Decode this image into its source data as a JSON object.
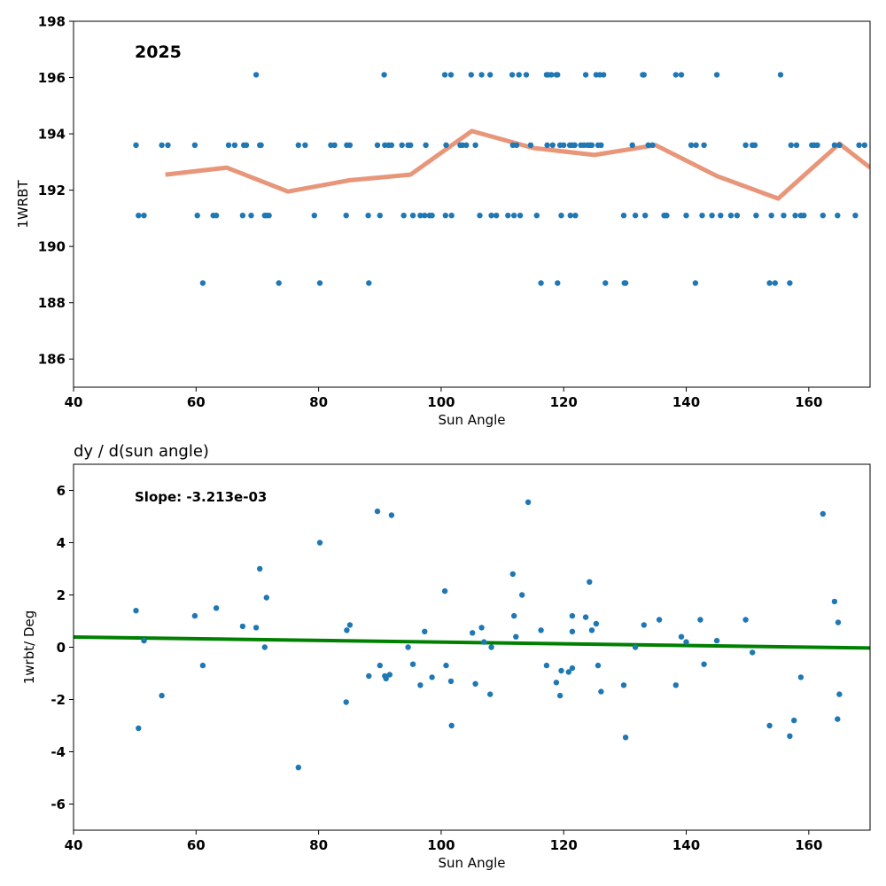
{
  "colors": {
    "scatter": "#1f77b4",
    "rolling_line": "#e8967a",
    "fit_line": "#008000",
    "axis": "#000000"
  },
  "chart_data": [
    {
      "type": "scatter",
      "title": "",
      "annotation": "2025",
      "xlabel": "Sun Angle",
      "ylabel": "1WRBT",
      "xlim": [
        40,
        170
      ],
      "ylim": [
        185,
        198
      ],
      "xticks": [
        40,
        60,
        80,
        100,
        120,
        140,
        160
      ],
      "yticks": [
        186,
        188,
        190,
        192,
        194,
        196,
        198
      ],
      "grid": false,
      "series": [
        {
          "kind": "scatter",
          "points": [
            [
              50.2,
              193.6
            ],
            [
              50.6,
              191.1
            ],
            [
              51.5,
              191.1
            ],
            [
              54.4,
              193.6
            ],
            [
              55.4,
              193.6
            ],
            [
              59.8,
              193.6
            ],
            [
              60.2,
              191.1
            ],
            [
              61.1,
              188.7
            ],
            [
              62.8,
              191.1
            ],
            [
              63.3,
              191.1
            ],
            [
              65.3,
              193.6
            ],
            [
              66.3,
              193.6
            ],
            [
              67.6,
              191.1
            ],
            [
              67.8,
              193.6
            ],
            [
              68.2,
              193.6
            ],
            [
              69.0,
              191.1
            ],
            [
              69.8,
              196.1
            ],
            [
              70.4,
              193.6
            ],
            [
              70.6,
              193.6
            ],
            [
              71.2,
              191.1
            ],
            [
              71.5,
              191.1
            ],
            [
              71.9,
              191.1
            ],
            [
              73.5,
              188.7
            ],
            [
              76.7,
              193.6
            ],
            [
              77.8,
              193.6
            ],
            [
              79.3,
              191.1
            ],
            [
              80.2,
              188.7
            ],
            [
              82.0,
              193.6
            ],
            [
              82.6,
              193.6
            ],
            [
              84.5,
              191.1
            ],
            [
              84.6,
              193.6
            ],
            [
              85.1,
              193.6
            ],
            [
              88.1,
              191.1
            ],
            [
              88.2,
              188.7
            ],
            [
              89.6,
              193.6
            ],
            [
              90.0,
              191.1
            ],
            [
              90.7,
              196.1
            ],
            [
              90.8,
              193.6
            ],
            [
              91.4,
              193.6
            ],
            [
              91.9,
              193.6
            ],
            [
              93.6,
              193.6
            ],
            [
              93.9,
              191.1
            ],
            [
              94.6,
              193.6
            ],
            [
              95.0,
              193.6
            ],
            [
              95.4,
              191.1
            ],
            [
              96.6,
              191.1
            ],
            [
              97.3,
              191.1
            ],
            [
              97.5,
              193.6
            ],
            [
              98.1,
              191.1
            ],
            [
              98.5,
              191.1
            ],
            [
              100.6,
              196.1
            ],
            [
              100.7,
              191.1
            ],
            [
              100.8,
              193.6
            ],
            [
              101.6,
              196.1
            ],
            [
              101.7,
              191.1
            ],
            [
              103.1,
              193.6
            ],
            [
              103.5,
              193.6
            ],
            [
              104.1,
              193.6
            ],
            [
              104.9,
              196.1
            ],
            [
              105.6,
              193.6
            ],
            [
              106.3,
              191.1
            ],
            [
              106.6,
              196.1
            ],
            [
              108.0,
              196.1
            ],
            [
              108.2,
              191.1
            ],
            [
              109.0,
              191.1
            ],
            [
              110.9,
              191.1
            ],
            [
              111.6,
              196.1
            ],
            [
              111.7,
              193.6
            ],
            [
              111.9,
              191.1
            ],
            [
              112.3,
              193.6
            ],
            [
              112.7,
              196.1
            ],
            [
              112.9,
              191.1
            ],
            [
              113.9,
              196.1
            ],
            [
              114.6,
              193.6
            ],
            [
              115.6,
              191.1
            ],
            [
              116.3,
              188.7
            ],
            [
              117.2,
              196.1
            ],
            [
              117.3,
              193.6
            ],
            [
              117.5,
              196.1
            ],
            [
              118.0,
              196.1
            ],
            [
              118.2,
              193.6
            ],
            [
              118.8,
              196.1
            ],
            [
              119.0,
              196.1
            ],
            [
              119.0,
              188.7
            ],
            [
              119.4,
              193.6
            ],
            [
              119.6,
              191.1
            ],
            [
              120.0,
              193.6
            ],
            [
              121.0,
              193.6
            ],
            [
              121.1,
              191.1
            ],
            [
              121.4,
              193.6
            ],
            [
              121.8,
              193.6
            ],
            [
              121.9,
              191.1
            ],
            [
              122.8,
              193.6
            ],
            [
              123.3,
              193.6
            ],
            [
              123.6,
              196.1
            ],
            [
              123.9,
              193.6
            ],
            [
              124.3,
              193.6
            ],
            [
              124.6,
              193.6
            ],
            [
              125.3,
              196.1
            ],
            [
              125.6,
              193.6
            ],
            [
              125.9,
              196.1
            ],
            [
              126.1,
              193.6
            ],
            [
              126.5,
              196.1
            ],
            [
              126.8,
              188.7
            ],
            [
              129.8,
              191.1
            ],
            [
              129.9,
              188.7
            ],
            [
              130.1,
              188.7
            ],
            [
              131.2,
              193.6
            ],
            [
              131.7,
              191.1
            ],
            [
              132.9,
              196.1
            ],
            [
              133.1,
              196.1
            ],
            [
              133.3,
              191.1
            ],
            [
              133.8,
              193.6
            ],
            [
              134.5,
              193.6
            ],
            [
              136.4,
              191.1
            ],
            [
              136.6,
              191.1
            ],
            [
              136.8,
              191.1
            ],
            [
              138.3,
              196.1
            ],
            [
              139.2,
              196.1
            ],
            [
              140.0,
              191.1
            ],
            [
              140.8,
              193.6
            ],
            [
              141.5,
              188.7
            ],
            [
              141.6,
              193.6
            ],
            [
              142.6,
              191.1
            ],
            [
              142.9,
              193.6
            ],
            [
              144.2,
              191.1
            ],
            [
              145.0,
              196.1
            ],
            [
              145.6,
              191.1
            ],
            [
              147.3,
              191.1
            ],
            [
              148.3,
              191.1
            ],
            [
              149.7,
              193.6
            ],
            [
              150.8,
              193.6
            ],
            [
              151.2,
              193.6
            ],
            [
              151.4,
              191.1
            ],
            [
              153.6,
              188.7
            ],
            [
              153.9,
              191.1
            ],
            [
              154.5,
              188.7
            ],
            [
              155.4,
              196.1
            ],
            [
              155.9,
              191.1
            ],
            [
              156.9,
              188.7
            ],
            [
              157.1,
              193.6
            ],
            [
              157.8,
              191.1
            ],
            [
              158.0,
              193.6
            ],
            [
              158.7,
              191.1
            ],
            [
              159.2,
              191.1
            ],
            [
              160.5,
              193.6
            ],
            [
              160.9,
              193.6
            ],
            [
              161.4,
              193.6
            ],
            [
              162.3,
              191.1
            ],
            [
              164.2,
              193.6
            ],
            [
              164.7,
              191.1
            ],
            [
              165.0,
              193.6
            ],
            [
              167.6,
              191.1
            ],
            [
              168.2,
              193.6
            ],
            [
              169.1,
              193.6
            ]
          ]
        },
        {
          "kind": "line",
          "points": [
            [
              55,
              192.55
            ],
            [
              65,
              192.8
            ],
            [
              75,
              191.95
            ],
            [
              85,
              192.35
            ],
            [
              95,
              192.55
            ],
            [
              105,
              194.1
            ],
            [
              115,
              193.5
            ],
            [
              125,
              193.25
            ],
            [
              135,
              193.6
            ],
            [
              145,
              192.5
            ],
            [
              155,
              191.7
            ],
            [
              165,
              193.65
            ],
            [
              170,
              192.8
            ]
          ]
        }
      ]
    },
    {
      "type": "scatter",
      "title": "dy / d(sun angle)",
      "annotation": "Slope: -3.213e-03",
      "xlabel": "Sun Angle",
      "ylabel": "1wrbt/ Deg",
      "xlim": [
        40,
        170
      ],
      "ylim": [
        -7,
        7
      ],
      "xticks": [
        40,
        60,
        80,
        100,
        120,
        140,
        160
      ],
      "yticks": [
        -6,
        -4,
        -2,
        0,
        2,
        4,
        6
      ],
      "grid": false,
      "series": [
        {
          "kind": "scatter",
          "points": [
            [
              50.2,
              1.4
            ],
            [
              50.6,
              -3.1
            ],
            [
              51.5,
              0.25
            ],
            [
              54.4,
              -1.85
            ],
            [
              59.8,
              1.2
            ],
            [
              61.1,
              -0.7
            ],
            [
              63.3,
              1.5
            ],
            [
              67.6,
              0.8
            ],
            [
              69.8,
              0.75
            ],
            [
              70.4,
              3.0
            ],
            [
              71.2,
              0.0
            ],
            [
              71.5,
              1.9
            ],
            [
              76.7,
              -4.6
            ],
            [
              80.2,
              4.0
            ],
            [
              84.5,
              -2.1
            ],
            [
              84.6,
              0.65
            ],
            [
              85.1,
              0.85
            ],
            [
              88.2,
              -1.1
            ],
            [
              89.6,
              5.2
            ],
            [
              90.0,
              -0.7
            ],
            [
              90.8,
              -1.1
            ],
            [
              91.0,
              -1.2
            ],
            [
              91.6,
              -1.05
            ],
            [
              91.9,
              5.05
            ],
            [
              94.6,
              0.0
            ],
            [
              95.4,
              -0.65
            ],
            [
              96.6,
              -1.45
            ],
            [
              97.3,
              0.6
            ],
            [
              98.5,
              -1.15
            ],
            [
              100.6,
              2.15
            ],
            [
              100.8,
              -0.7
            ],
            [
              101.6,
              -1.3
            ],
            [
              101.7,
              -3.0
            ],
            [
              105.1,
              0.55
            ],
            [
              105.6,
              -1.4
            ],
            [
              106.6,
              0.75
            ],
            [
              107.0,
              0.2
            ],
            [
              108.0,
              -1.8
            ],
            [
              108.2,
              0.0
            ],
            [
              111.7,
              2.8
            ],
            [
              111.9,
              1.2
            ],
            [
              112.2,
              0.4
            ],
            [
              113.2,
              2.0
            ],
            [
              114.2,
              5.55
            ],
            [
              116.3,
              0.65
            ],
            [
              117.2,
              -0.7
            ],
            [
              118.8,
              -1.35
            ],
            [
              119.4,
              -1.85
            ],
            [
              119.6,
              -0.9
            ],
            [
              120.8,
              -0.95
            ],
            [
              121.4,
              1.2
            ],
            [
              121.4,
              -0.8
            ],
            [
              121.4,
              0.6
            ],
            [
              123.6,
              1.15
            ],
            [
              124.2,
              2.5
            ],
            [
              124.6,
              0.65
            ],
            [
              125.3,
              0.9
            ],
            [
              125.6,
              -0.7
            ],
            [
              126.1,
              -1.7
            ],
            [
              129.8,
              -1.45
            ],
            [
              130.1,
              -3.45
            ],
            [
              131.7,
              0.0
            ],
            [
              133.1,
              0.85
            ],
            [
              135.6,
              1.05
            ],
            [
              138.3,
              -1.45
            ],
            [
              139.2,
              0.4
            ],
            [
              140.0,
              0.2
            ],
            [
              142.3,
              1.05
            ],
            [
              142.9,
              -0.65
            ],
            [
              145.0,
              0.25
            ],
            [
              149.7,
              1.05
            ],
            [
              150.8,
              -0.2
            ],
            [
              153.6,
              -3.0
            ],
            [
              156.9,
              -3.4
            ],
            [
              157.6,
              -2.8
            ],
            [
              158.7,
              -1.15
            ],
            [
              162.3,
              5.1
            ],
            [
              164.2,
              1.75
            ],
            [
              164.7,
              -2.75
            ],
            [
              164.8,
              0.95
            ],
            [
              165.0,
              -1.8
            ]
          ]
        },
        {
          "kind": "line",
          "points": [
            [
              40,
              0.39
            ],
            [
              170,
              -0.03
            ]
          ]
        }
      ]
    }
  ]
}
